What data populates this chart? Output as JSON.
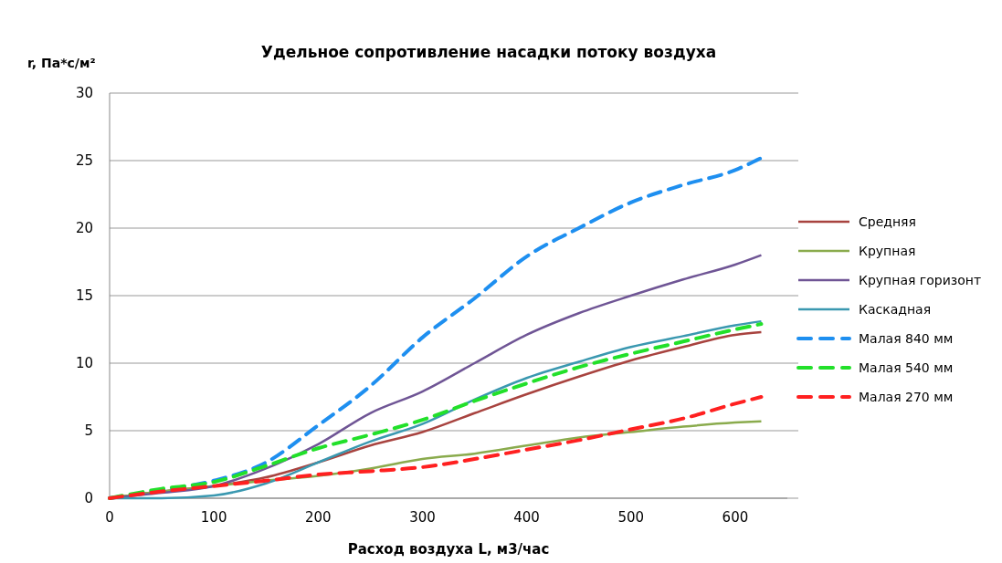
{
  "chart_data": {
    "type": "line",
    "title": "Удельное сопротивление насадки потоку воздуха",
    "xlabel": "Расход воздуха L,  м3/час",
    "ylabel": "r, Па*с/м²",
    "x": [
      0,
      50,
      100,
      150,
      200,
      250,
      300,
      350,
      400,
      450,
      500,
      550,
      600,
      625
    ],
    "xlim": [
      0,
      650
    ],
    "xticks": [
      0,
      100,
      200,
      300,
      400,
      500,
      600
    ],
    "ylim": [
      0,
      30
    ],
    "yticks": [
      0,
      5,
      10,
      15,
      20,
      25,
      30
    ],
    "grid": "y",
    "legend": "right",
    "series": [
      {
        "name": "Средняя",
        "color": "#a8433f",
        "line_style": "solid",
        "values": [
          0,
          0.5,
          0.9,
          1.55,
          2.65,
          3.9,
          4.9,
          6.3,
          7.7,
          9.0,
          10.2,
          11.2,
          12.1,
          12.3
        ]
      },
      {
        "name": "Крупная",
        "color": "#8aab4d",
        "line_style": "solid",
        "values": [
          0,
          0.5,
          0.9,
          1.3,
          1.65,
          2.2,
          2.9,
          3.3,
          3.9,
          4.5,
          4.9,
          5.3,
          5.6,
          5.7
        ]
      },
      {
        "name": "Крупная горизонт",
        "color": "#6f5595",
        "line_style": "solid",
        "values": [
          0,
          0.4,
          0.9,
          2.2,
          4.0,
          6.3,
          7.9,
          10.0,
          12.1,
          13.7,
          15.0,
          16.2,
          17.3,
          18.0
        ]
      },
      {
        "name": "Каскадная",
        "color": "#3a98b0",
        "line_style": "solid",
        "values": [
          0,
          0,
          0.2,
          1.1,
          2.65,
          4.2,
          5.5,
          7.3,
          8.9,
          10.1,
          11.2,
          12.0,
          12.8,
          13.1
        ]
      },
      {
        "name": "Малая 840 мм",
        "color": "#1e8ff0",
        "line_style": "dashed",
        "values": [
          0,
          0.6,
          1.3,
          2.65,
          5.4,
          8.3,
          11.9,
          14.8,
          17.9,
          20.0,
          21.9,
          23.2,
          24.3,
          25.2
        ]
      },
      {
        "name": "Малая 540 мм",
        "color": "#22e02a",
        "line_style": "dashed",
        "values": [
          0,
          0.7,
          1.2,
          2.4,
          3.7,
          4.7,
          5.8,
          7.2,
          8.5,
          9.7,
          10.7,
          11.6,
          12.5,
          12.9
        ]
      },
      {
        "name": "Малая 270 мм",
        "color": "#ff2020",
        "line_style": "dashed",
        "values": [
          0,
          0.5,
          0.9,
          1.3,
          1.75,
          2.0,
          2.3,
          2.9,
          3.6,
          4.3,
          5.1,
          5.9,
          7.0,
          7.5
        ]
      }
    ]
  }
}
